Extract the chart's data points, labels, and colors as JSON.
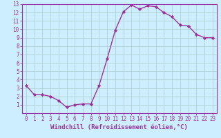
{
  "x": [
    0,
    1,
    2,
    3,
    4,
    5,
    6,
    7,
    8,
    9,
    10,
    11,
    12,
    13,
    14,
    15,
    16,
    17,
    18,
    19,
    20,
    21,
    22,
    23
  ],
  "y": [
    3.3,
    2.2,
    2.2,
    2.0,
    1.5,
    0.7,
    1.0,
    1.1,
    1.1,
    3.3,
    6.5,
    9.9,
    12.1,
    12.9,
    12.4,
    12.8,
    12.7,
    12.0,
    11.5,
    10.5,
    10.4,
    9.4,
    9.0,
    9.0
  ],
  "line_color": "#993399",
  "marker": "D",
  "marker_size": 2.2,
  "bg_color": "#cceeff",
  "grid_color": "#aacccc",
  "xlabel": "Windchill (Refroidissement éolien,°C)",
  "xlim": [
    -0.5,
    23.5
  ],
  "ylim": [
    0,
    13
  ],
  "yticks": [
    1,
    2,
    3,
    4,
    5,
    6,
    7,
    8,
    9,
    10,
    11,
    12,
    13
  ],
  "xticks": [
    0,
    1,
    2,
    3,
    4,
    5,
    6,
    7,
    8,
    9,
    10,
    11,
    12,
    13,
    14,
    15,
    16,
    17,
    18,
    19,
    20,
    21,
    22,
    23
  ],
  "tick_label_size": 5.5,
  "xlabel_size": 6.5,
  "line_width": 1.0
}
